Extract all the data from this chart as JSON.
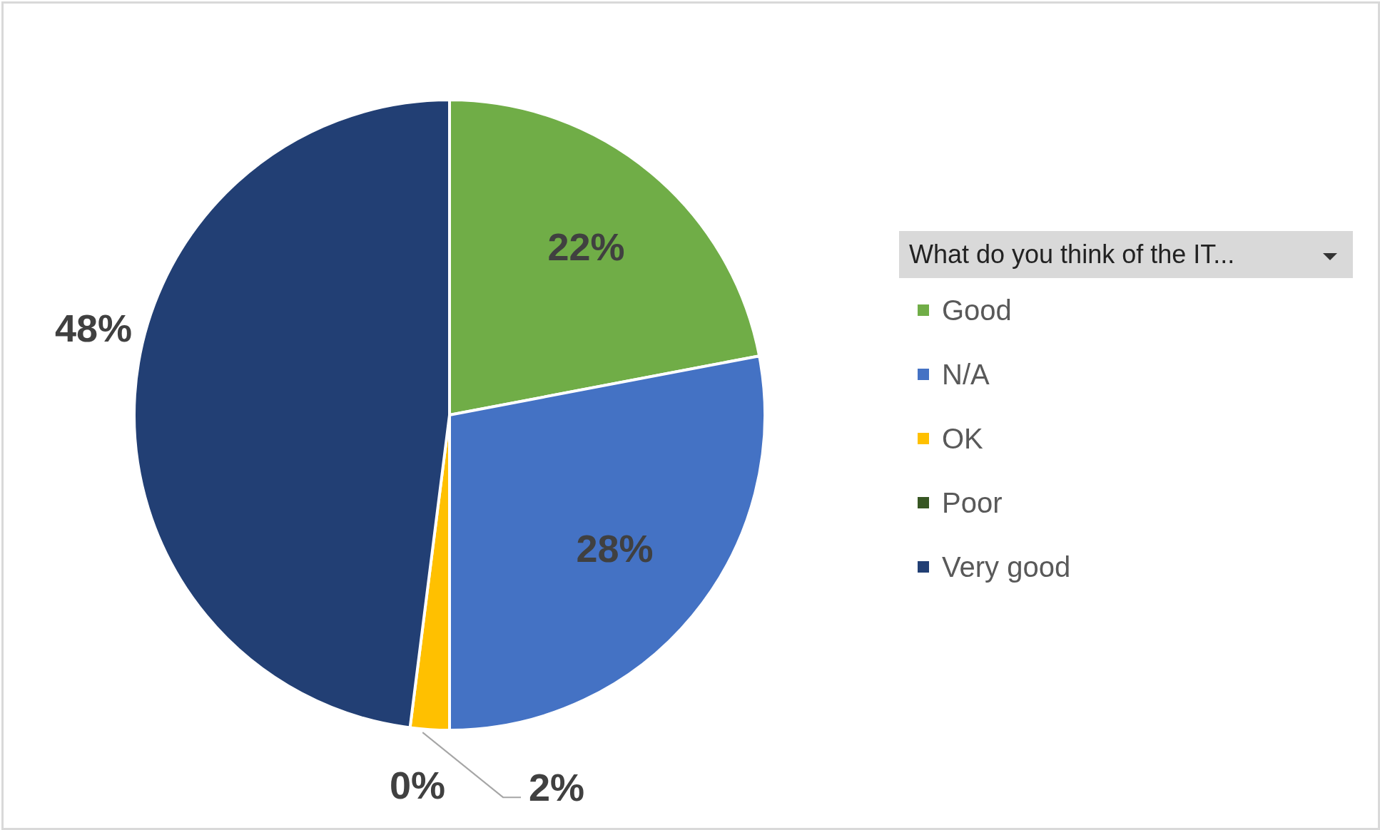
{
  "chart_data": {
    "type": "pie",
    "legend_title": "What do you think of the IT...",
    "categories": [
      "Good",
      "N/A",
      "OK",
      "Poor",
      "Very good"
    ],
    "values": [
      22,
      28,
      2,
      0,
      48
    ],
    "value_labels": [
      "22%",
      "28%",
      "2%",
      "0%",
      "48%"
    ],
    "colors": [
      "#70ad47",
      "#4472c4",
      "#ffc000",
      "#375623",
      "#223f74"
    ],
    "legend": "right"
  }
}
